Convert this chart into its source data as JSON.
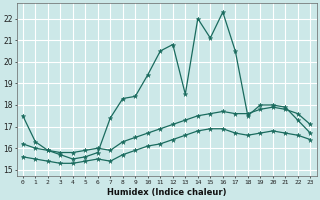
{
  "xlabel": "Humidex (Indice chaleur)",
  "ylabel": "",
  "bg_color": "#cce8e8",
  "grid_color": "#ffffff",
  "line_color": "#1a6b5e",
  "xlim": [
    -0.5,
    23.5
  ],
  "ylim": [
    14.7,
    22.7
  ],
  "yticks": [
    15,
    16,
    17,
    18,
    19,
    20,
    21,
    22
  ],
  "xticks": [
    0,
    1,
    2,
    3,
    4,
    5,
    6,
    7,
    8,
    9,
    10,
    11,
    12,
    13,
    14,
    15,
    16,
    17,
    18,
    19,
    20,
    21,
    22,
    23
  ],
  "series1_x": [
    0,
    1,
    2,
    3,
    4,
    5,
    6,
    7,
    8,
    9,
    10,
    11,
    12,
    13,
    14,
    15,
    16,
    17,
    18,
    19,
    20,
    21,
    22,
    23
  ],
  "series1_y": [
    17.5,
    16.3,
    15.9,
    15.7,
    15.5,
    15.6,
    15.8,
    17.4,
    18.3,
    18.4,
    19.4,
    20.5,
    20.8,
    18.5,
    22.0,
    21.1,
    22.3,
    20.5,
    17.5,
    18.0,
    18.0,
    17.9,
    17.3,
    16.7
  ],
  "series2_x": [
    0,
    1,
    2,
    3,
    4,
    5,
    6,
    7,
    8,
    9,
    10,
    11,
    12,
    13,
    14,
    15,
    16,
    17,
    18,
    19,
    20,
    21,
    22,
    23
  ],
  "series2_y": [
    16.2,
    16.0,
    15.9,
    15.8,
    15.8,
    15.9,
    16.0,
    15.9,
    16.3,
    16.5,
    16.7,
    16.9,
    17.1,
    17.3,
    17.5,
    17.6,
    17.7,
    17.6,
    17.6,
    17.8,
    17.9,
    17.8,
    17.6,
    17.1
  ],
  "series3_x": [
    0,
    1,
    2,
    3,
    4,
    5,
    6,
    7,
    8,
    9,
    10,
    11,
    12,
    13,
    14,
    15,
    16,
    17,
    18,
    19,
    20,
    21,
    22,
    23
  ],
  "series3_y": [
    15.6,
    15.5,
    15.4,
    15.3,
    15.3,
    15.4,
    15.5,
    15.4,
    15.7,
    15.9,
    16.1,
    16.2,
    16.4,
    16.6,
    16.8,
    16.9,
    16.9,
    16.7,
    16.6,
    16.7,
    16.8,
    16.7,
    16.6,
    16.4
  ]
}
